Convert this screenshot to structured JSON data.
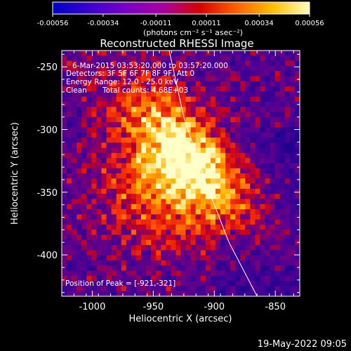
{
  "colorbar": {
    "tick_labels": [
      "-0.00056",
      "-0.00034",
      "-0.00011",
      "0.00011",
      "0.00034",
      "0.00056"
    ],
    "tick_values": [
      -0.00056,
      -0.00034,
      -0.00011,
      0.00011,
      0.00034,
      0.00056
    ],
    "range": [
      -0.00056,
      0.00056
    ],
    "units": "(photons cm⁻² s⁻¹ asec⁻²)",
    "colormap": [
      "#0000c8",
      "#3c00d0",
      "#7a00c8",
      "#a800a0",
      "#d80000",
      "#ff6000",
      "#ffc000",
      "#ffffc0"
    ]
  },
  "chart_data": {
    "type": "heatmap",
    "title": "Reconstructed RHESSI Image",
    "xlabel": "Heliocentric X (arcsec)",
    "ylabel": "Heliocentric Y (arcsec)",
    "xlim": [
      -1025,
      -830
    ],
    "ylim": [
      -433,
      -237
    ],
    "x_ticks": [
      -1000,
      -950,
      -900,
      -850
    ],
    "x_tick_labels": [
      "-1000",
      "-950",
      "-900",
      "-850"
    ],
    "y_ticks": [
      -250,
      -300,
      -350,
      -400
    ],
    "y_tick_labels": [
      "-250",
      "-300",
      "-350",
      "-400"
    ],
    "peak": [
      -921,
      -321
    ],
    "limb_curve": [
      [
        -937,
        -237
      ],
      [
        -925,
        -290
      ],
      [
        -908,
        -340
      ],
      [
        -888,
        -390
      ],
      [
        -865,
        -433
      ]
    ],
    "annotations": {
      "time": "6-Mar-2015 03:53:20.000 to 03:57:20.000",
      "detectors": "Detectors: 3F 5F 6F 7F 8F 9F, Att 0",
      "energy": "Energy Range: 12.0 - 25.0 keV",
      "clean_label": "Clean",
      "counts": "Total counts: 4.68E+03",
      "peak_text": "Position of Peak = [-921,-321]"
    }
  },
  "timestamp": "19-May-2022 09:05"
}
